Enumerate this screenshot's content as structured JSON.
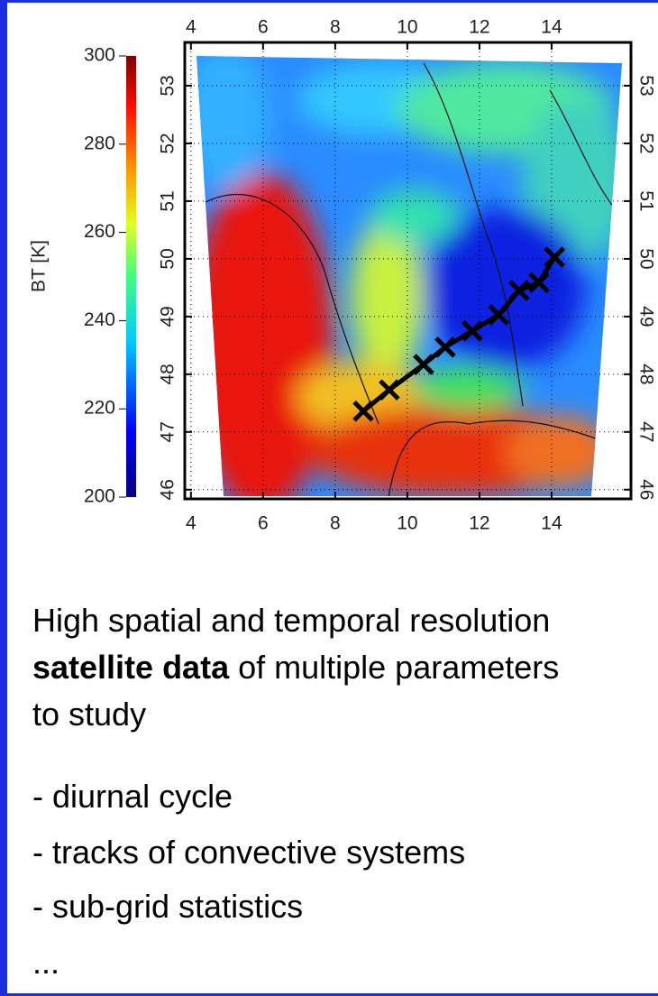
{
  "chart_data": {
    "type": "map",
    "xticks": [
      4,
      6,
      8,
      10,
      12,
      14
    ],
    "yticks": [
      46,
      47,
      48,
      49,
      50,
      51,
      52,
      53
    ],
    "xlim": [
      3.83,
      16.2
    ],
    "ylim": [
      45.84,
      53.75
    ],
    "colorbar": {
      "label": "BT [K]",
      "lim": [
        200,
        300
      ],
      "ticks": [
        200,
        220,
        240,
        260,
        280,
        300
      ]
    },
    "track": {
      "x": [
        8.78,
        9.5,
        10.45,
        11.05,
        11.8,
        12.53,
        13.1,
        13.65,
        14.08
      ],
      "y": [
        47.36,
        47.73,
        48.17,
        48.47,
        48.75,
        49.03,
        49.45,
        49.59,
        50.03
      ]
    }
  },
  "text": {
    "paragraph": {
      "before": "High spatial and temporal resolution",
      "bold": "satellite data",
      "after": "of multiple parameters to study"
    },
    "bullets": [
      "- diurnal cycle",
      "- tracks of convective systems",
      "- sub-grid statistics",
      "..."
    ]
  }
}
